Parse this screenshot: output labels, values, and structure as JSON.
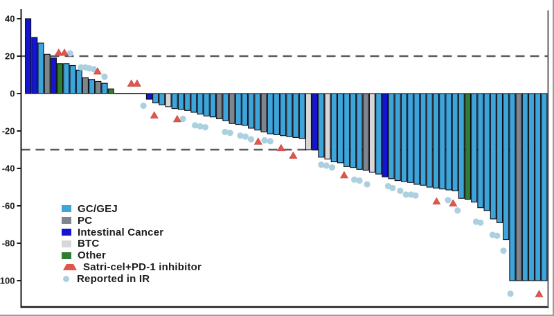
{
  "page": {
    "background": "#ffffff"
  },
  "legend": {
    "items": [
      {
        "key": "GC",
        "label": "GC/GEJ"
      },
      {
        "key": "PC",
        "label": "PC"
      },
      {
        "key": "IC",
        "label": "Intestinal Cancer"
      },
      {
        "key": "BTC",
        "label": "BTC"
      },
      {
        "key": "OT",
        "label": "Other"
      },
      {
        "key": "SATRI",
        "label": "Satri-cel+PD-1 inhibitor"
      },
      {
        "key": "IR",
        "label": "Reported in IR"
      }
    ]
  },
  "chart_data": {
    "type": "bar",
    "subtype": "waterfall-best-tumor-change",
    "title": "",
    "xlabel": "",
    "ylabel": "",
    "yticks": [
      40,
      20,
      0,
      -20,
      -40,
      -60,
      -80,
      -100
    ],
    "ylim": [
      -114,
      44
    ],
    "reference_lines": [
      20,
      -30
    ],
    "grid": false,
    "legend_position": "lower-left",
    "colors": {
      "GC": "#3EA5DB",
      "PC": "#7E868D",
      "IC": "#1414D2",
      "BTC": "#D7D7D7",
      "OT": "#2E7D32",
      "SATRI": "#E0564C",
      "IR": "#ABD0E0",
      "dash": "#5a5a5a",
      "axis": "#1a1a1a",
      "right_spine": "#5f5f5f"
    },
    "bars": [
      [
        40,
        "IC"
      ],
      [
        30,
        "IC"
      ],
      [
        27,
        "GC"
      ],
      [
        21,
        "PC"
      ],
      [
        19,
        "IC"
      ],
      [
        16,
        "OT"
      ],
      [
        16,
        "GC"
      ],
      [
        15,
        "GC"
      ],
      [
        12.5,
        "GC"
      ],
      [
        8.5,
        "PC"
      ],
      [
        7.5,
        "GC"
      ],
      [
        6.5,
        "PC"
      ],
      [
        5.5,
        "GC"
      ],
      [
        2.5,
        "OT"
      ],
      [
        0,
        "GC"
      ],
      [
        0,
        "GC"
      ],
      [
        0,
        "GC"
      ],
      [
        0,
        "GC"
      ],
      [
        0,
        "GC"
      ],
      [
        -3,
        "IC"
      ],
      [
        -5,
        "GC"
      ],
      [
        -6,
        "GC"
      ],
      [
        -7,
        "BTC"
      ],
      [
        -8,
        "GC"
      ],
      [
        -8.5,
        "GC"
      ],
      [
        -9,
        "GC"
      ],
      [
        -10,
        "GC"
      ],
      [
        -11,
        "GC"
      ],
      [
        -12,
        "GC"
      ],
      [
        -12.5,
        "GC"
      ],
      [
        -13.5,
        "PC"
      ],
      [
        -14.5,
        "GC"
      ],
      [
        -16,
        "PC"
      ],
      [
        -16.5,
        "GC"
      ],
      [
        -17,
        "GC"
      ],
      [
        -18.5,
        "GC"
      ],
      [
        -19.5,
        "GC"
      ],
      [
        -20.5,
        "PC"
      ],
      [
        -21.5,
        "GC"
      ],
      [
        -22,
        "GC"
      ],
      [
        -22.5,
        "GC"
      ],
      [
        -23,
        "GC"
      ],
      [
        -23.5,
        "GC"
      ],
      [
        -24,
        "GC"
      ],
      [
        -30,
        "BTC"
      ],
      [
        -30,
        "IC"
      ],
      [
        -34,
        "GC"
      ],
      [
        -35,
        "BTC"
      ],
      [
        -36.5,
        "GC"
      ],
      [
        -37,
        "GC"
      ],
      [
        -39,
        "GC"
      ],
      [
        -39.5,
        "GC"
      ],
      [
        -40.5,
        "GC"
      ],
      [
        -41,
        "PC"
      ],
      [
        -42,
        "BTC"
      ],
      [
        -43,
        "GC"
      ],
      [
        -44.5,
        "IC"
      ],
      [
        -45.5,
        "GC"
      ],
      [
        -46.5,
        "GC"
      ],
      [
        -47,
        "GC"
      ],
      [
        -47.5,
        "GC"
      ],
      [
        -48.5,
        "GC"
      ],
      [
        -49,
        "GC"
      ],
      [
        -50,
        "GC"
      ],
      [
        -50.5,
        "GC"
      ],
      [
        -51,
        "GC"
      ],
      [
        -51.5,
        "GC"
      ],
      [
        -52,
        "GC"
      ],
      [
        -56,
        "GC"
      ],
      [
        -56.5,
        "OT"
      ],
      [
        -58,
        "GC"
      ],
      [
        -61,
        "GC"
      ],
      [
        -62.5,
        "GC"
      ],
      [
        -67,
        "GC"
      ],
      [
        -69,
        "GC"
      ],
      [
        -78,
        "GC"
      ],
      [
        -100,
        "GC"
      ],
      [
        -100,
        "PC"
      ],
      [
        -100,
        "GC"
      ],
      [
        -100,
        "GC"
      ],
      [
        -100,
        "GC"
      ],
      [
        -100,
        "GC"
      ]
    ],
    "markers": {
      "satri_pd1": [
        [
          5.8,
          22
        ],
        [
          6.7,
          22
        ],
        [
          11.9,
          12
        ],
        [
          17.2,
          5.5
        ],
        [
          18.1,
          5.5
        ],
        [
          20.8,
          -11.5
        ],
        [
          24.4,
          -13.5
        ],
        [
          37.1,
          -25.5
        ],
        [
          40.7,
          -29
        ],
        [
          42.6,
          -33
        ],
        [
          50.6,
          -43.5
        ],
        [
          65.1,
          -57.5
        ],
        [
          67.7,
          -58.5
        ],
        [
          81.2,
          -107
        ]
      ],
      "reported_ir": [
        [
          7.6,
          21.5
        ],
        [
          9.3,
          14
        ],
        [
          10,
          14
        ],
        [
          10.6,
          13.5
        ],
        [
          11.3,
          13
        ],
        [
          13,
          9
        ],
        [
          19.1,
          -6.5
        ],
        [
          25.3,
          -13.5
        ],
        [
          27.2,
          -17
        ],
        [
          28,
          -17.5
        ],
        [
          28.8,
          -18
        ],
        [
          31.9,
          -20.5
        ],
        [
          32.7,
          -21
        ],
        [
          34.3,
          -22.5
        ],
        [
          35.1,
          -23
        ],
        [
          36,
          -24.5
        ],
        [
          38.1,
          -25
        ],
        [
          39,
          -25.5
        ],
        [
          47,
          -38
        ],
        [
          47.8,
          -38.5
        ],
        [
          48.7,
          -39.5
        ],
        [
          52.2,
          -46
        ],
        [
          53,
          -46.5
        ],
        [
          54.2,
          -48.5
        ],
        [
          57.5,
          -49.5
        ],
        [
          58.2,
          -50.5
        ],
        [
          59.4,
          -52
        ],
        [
          60.3,
          -54
        ],
        [
          61.1,
          -54
        ],
        [
          61.8,
          -54.5
        ],
        [
          66.9,
          -57
        ],
        [
          68.4,
          -62.5
        ],
        [
          71.3,
          -68.5
        ],
        [
          72,
          -69
        ],
        [
          73.9,
          -75.5
        ],
        [
          74.6,
          -76
        ],
        [
          75.6,
          -84
        ],
        [
          76.7,
          -107
        ]
      ]
    }
  }
}
